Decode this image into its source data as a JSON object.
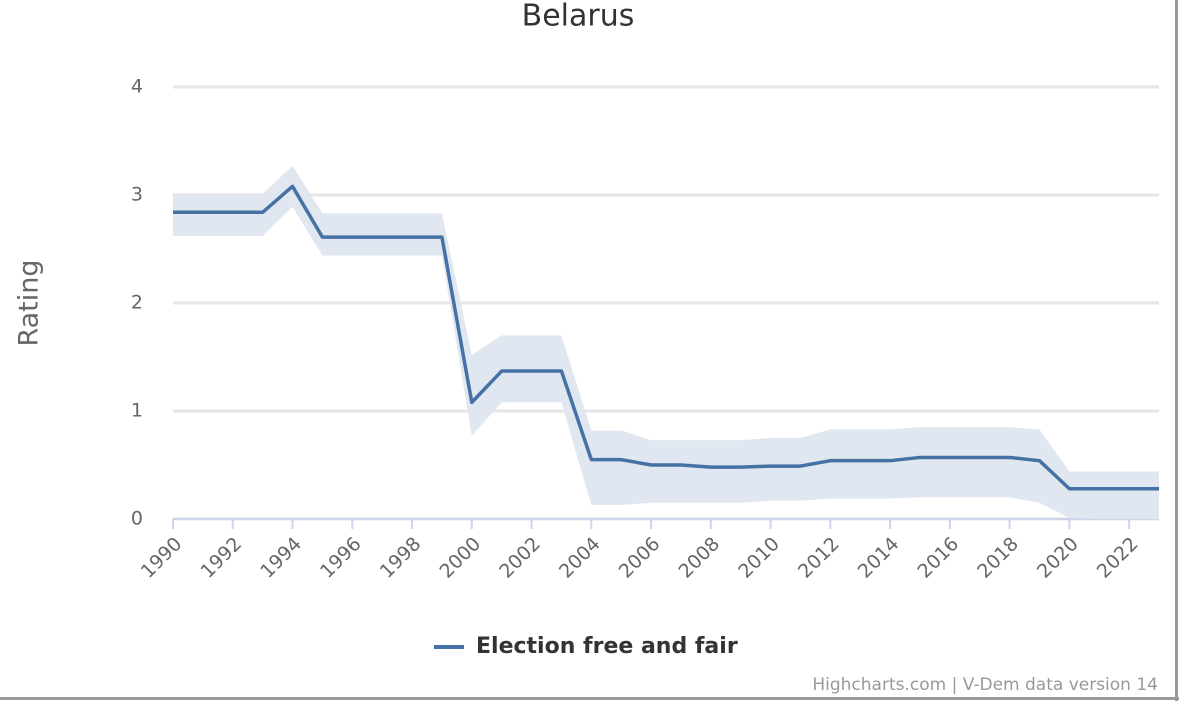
{
  "chart_data": {
    "type": "line",
    "title": "Belarus",
    "y_label": "Rating",
    "x": [
      1990,
      1991,
      1992,
      1993,
      1994,
      1995,
      1996,
      1997,
      1998,
      1999,
      2000,
      2001,
      2002,
      2003,
      2004,
      2005,
      2006,
      2007,
      2008,
      2009,
      2010,
      2011,
      2012,
      2013,
      2014,
      2015,
      2016,
      2017,
      2018,
      2019,
      2020,
      2021,
      2022,
      2023
    ],
    "series": [
      {
        "name": "Election free and fair",
        "color": "#4571a5",
        "values": [
          2.84,
          2.84,
          2.84,
          2.84,
          3.08,
          2.61,
          2.61,
          2.61,
          2.61,
          2.61,
          1.08,
          1.37,
          1.37,
          1.37,
          0.55,
          0.55,
          0.5,
          0.5,
          0.48,
          0.48,
          0.49,
          0.49,
          0.54,
          0.54,
          0.54,
          0.57,
          0.57,
          0.57,
          0.57,
          0.54,
          0.28,
          0.28,
          0.28,
          0.28
        ],
        "low": [
          2.62,
          2.62,
          2.62,
          2.62,
          2.89,
          2.44,
          2.44,
          2.44,
          2.44,
          2.44,
          0.77,
          1.08,
          1.08,
          1.08,
          0.13,
          0.13,
          0.15,
          0.15,
          0.15,
          0.15,
          0.17,
          0.17,
          0.19,
          0.19,
          0.19,
          0.2,
          0.2,
          0.2,
          0.2,
          0.15,
          0.01,
          0,
          0,
          0
        ],
        "high": [
          3.01,
          3.01,
          3.01,
          3.01,
          3.27,
          2.83,
          2.83,
          2.83,
          2.83,
          2.83,
          1.52,
          1.7,
          1.7,
          1.7,
          0.82,
          0.82,
          0.73,
          0.73,
          0.73,
          0.73,
          0.75,
          0.75,
          0.83,
          0.83,
          0.83,
          0.85,
          0.85,
          0.85,
          0.85,
          0.83,
          0.44,
          0.44,
          0.44,
          0.44
        ],
        "band_color": "#e1e7f0"
      }
    ],
    "xlim": [
      1990,
      2023
    ],
    "xticks": [
      1990,
      1992,
      1994,
      1996,
      1998,
      2000,
      2002,
      2004,
      2006,
      2008,
      2010,
      2012,
      2014,
      2016,
      2018,
      2020,
      2022
    ],
    "ylim": [
      0,
      4
    ],
    "yticks": [
      0,
      1,
      2,
      3,
      4
    ],
    "grid": true,
    "credits": "Highcharts.com | V-Dem data version 14"
  }
}
